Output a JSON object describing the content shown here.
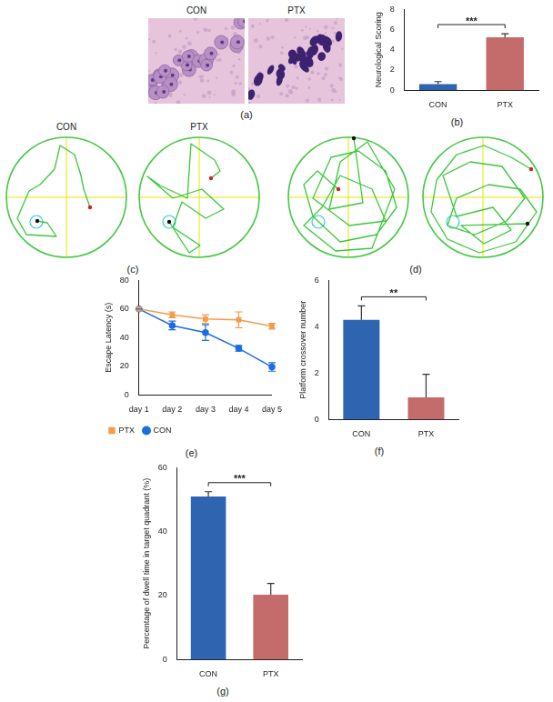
{
  "histology": {
    "caption": "(a)",
    "labels": [
      "CON",
      "PTX"
    ]
  },
  "swim_paths": [
    {
      "caption": "(c)",
      "labels": [
        "CON",
        "PTX"
      ]
    },
    {
      "caption": "(d)"
    }
  ],
  "chart_data": [
    {
      "caption": "(b)",
      "type": "bar",
      "categories": [
        "CON",
        "PTX"
      ],
      "values": [
        0.6,
        5.25
      ],
      "errors": [
        0.25,
        0.35
      ],
      "colors": [
        "#2f65b0",
        "#c46b6b"
      ],
      "y_label": "Neurological Scoring",
      "ylim": [
        0,
        8
      ],
      "yticks": [
        0,
        2,
        4,
        6,
        8
      ],
      "annotation": "***",
      "grid": false
    },
    {
      "caption": "(e)",
      "type": "line",
      "categories": [
        "day 1",
        "day 2",
        "day 3",
        "day 4",
        "day 5"
      ],
      "y_label": "Escape Latency (s)",
      "ylim": [
        0,
        80
      ],
      "yticks": [
        0,
        20,
        40,
        60,
        80
      ],
      "legend": "bottom",
      "grid": false,
      "series": [
        {
          "name": "PTX",
          "color": "#f39c4a",
          "marker": "square",
          "values": [
            60,
            56,
            53,
            52.5,
            48
          ],
          "errors": [
            0,
            2,
            3,
            5.5,
            2
          ]
        },
        {
          "name": "CON",
          "color": "#1a6ee0",
          "marker": "circle",
          "values": [
            60,
            48.5,
            43.5,
            32.5,
            19.5
          ],
          "errors": [
            0,
            3,
            5.5,
            2,
            3
          ]
        }
      ]
    },
    {
      "caption": "(f)",
      "type": "bar",
      "categories": [
        "CON",
        "PTX"
      ],
      "values": [
        4.3,
        0.95
      ],
      "errors": [
        0.6,
        1.0
      ],
      "colors": [
        "#2f65b0",
        "#c46b6b"
      ],
      "y_label": "Platform crossover number",
      "ylim": [
        0,
        6
      ],
      "yticks": [
        0,
        2,
        4,
        6
      ],
      "annotation": "**",
      "grid": false
    },
    {
      "caption": "(g)",
      "type": "bar",
      "categories": [
        "CON",
        "PTX"
      ],
      "values": [
        51,
        20.3
      ],
      "errors": [
        1.5,
        3.5
      ],
      "colors": [
        "#2f65b0",
        "#c46b6b"
      ],
      "y_label": "Percentage of dwell time in target quadrant (%)",
      "ylim": [
        0,
        60
      ],
      "yticks": [
        0,
        20,
        40,
        60
      ],
      "annotation": "***",
      "grid": false
    }
  ]
}
